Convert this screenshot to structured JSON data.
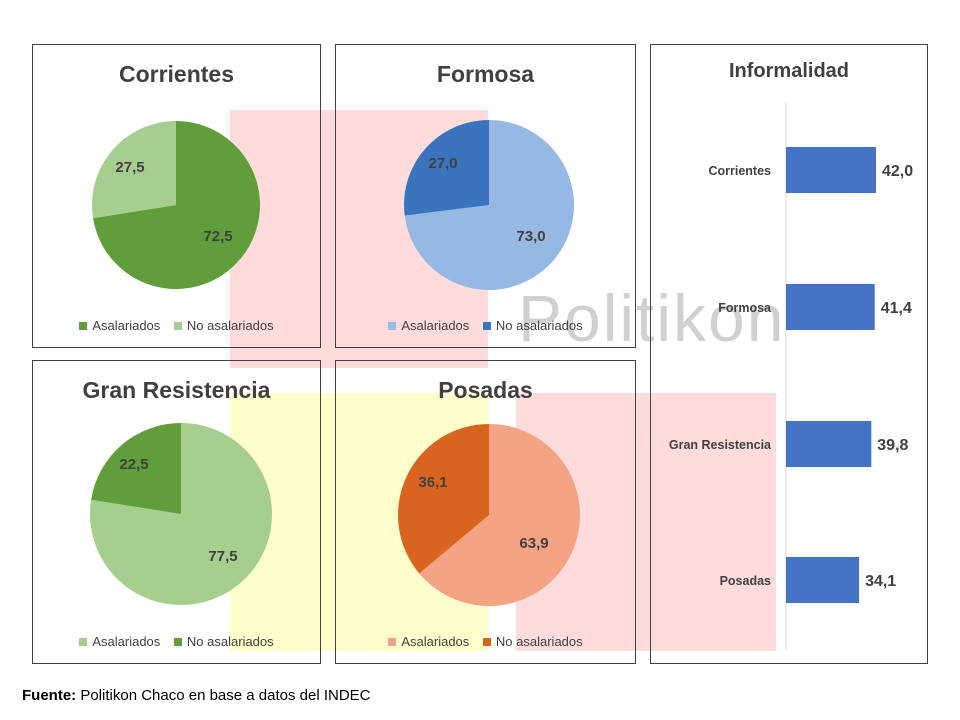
{
  "watermark": "Politikon",
  "footer": {
    "label": "Fuente:",
    "text": " Politikon Chaco en base a datos del INDEC"
  },
  "colors": {
    "bg_red": "#ffdcdc",
    "bg_yellow": "#ffffcc"
  },
  "chart_data": [
    {
      "type": "pie",
      "title": "Corrientes",
      "slices": [
        {
          "label": "Asalariados",
          "value": 72.5,
          "display": "72,5",
          "color": "#5f9e3a"
        },
        {
          "label": "No asalariados",
          "value": 27.5,
          "display": "27,5",
          "color": "#a6cf8f"
        }
      ]
    },
    {
      "type": "pie",
      "title": "Formosa",
      "slices": [
        {
          "label": "Asalariados",
          "value": 73.0,
          "display": "73,0",
          "color": "#96b9e4"
        },
        {
          "label": "No asalariados",
          "value": 27.0,
          "display": "27,0",
          "color": "#3a74bd"
        }
      ]
    },
    {
      "type": "pie",
      "title": "Gran Resistencia",
      "slices": [
        {
          "label": "Asalariados",
          "value": 77.5,
          "display": "77,5",
          "color": "#a6cf8f"
        },
        {
          "label": "No asalariados",
          "value": 22.5,
          "display": "22,5",
          "color": "#5f9e3a"
        }
      ]
    },
    {
      "type": "pie",
      "title": "Posadas",
      "slices": [
        {
          "label": "Asalariados",
          "value": 63.9,
          "display": "63,9",
          "color": "#f4a384"
        },
        {
          "label": "No asalariados",
          "value": 36.1,
          "display": "36,1",
          "color": "#d9641f"
        }
      ]
    },
    {
      "type": "bar",
      "orientation": "horizontal",
      "title": "Informalidad",
      "categories": [
        "Corrientes",
        "Formosa",
        "Gran Resistencia",
        "Posadas"
      ],
      "values": [
        42.0,
        41.4,
        39.8,
        34.1
      ],
      "display": [
        "42,0",
        "41,4",
        "39,8",
        "34,1"
      ],
      "color": "#4472c4",
      "xlim": [
        0,
        42
      ]
    }
  ]
}
